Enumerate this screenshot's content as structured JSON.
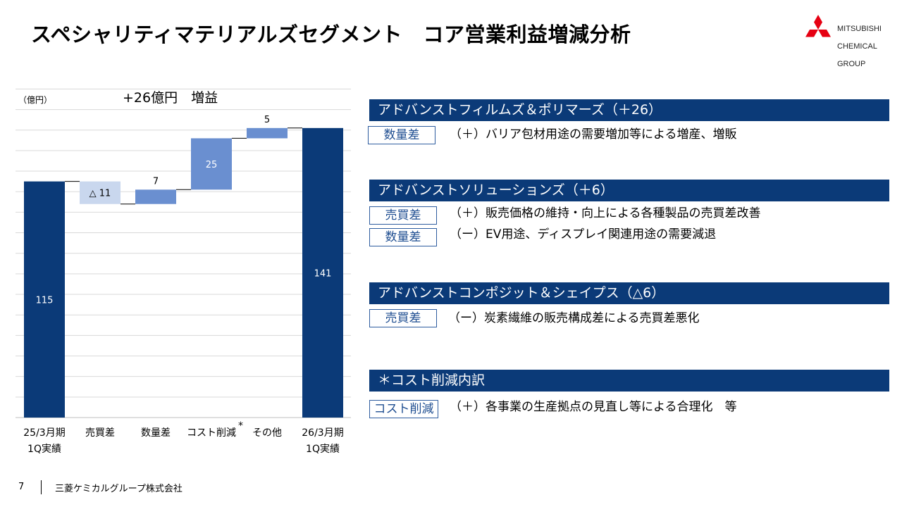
{
  "title": "スペシャリティマテリアルズセグメント　コア営業利益増減分析",
  "logo": {
    "line1": "MITSUBISHI",
    "line2": "CHEMICAL",
    "line3": "GROUP"
  },
  "unit_label": "（億円）",
  "headline": "+26億円　増益",
  "chart_data": {
    "type": "waterfall",
    "ylim": [
      0,
      160
    ],
    "grid": true,
    "categories": [
      "25/3月期\n1Q実績",
      "売買差",
      "数量差",
      "コスト削減",
      "その他",
      "26/3月期\n1Q実績"
    ],
    "steps": [
      {
        "label": "25/3月期\n1Q実績",
        "kind": "total",
        "value": 115,
        "data_label": "115"
      },
      {
        "label": "売買差",
        "kind": "delta",
        "value": -11,
        "data_label": "△ 11"
      },
      {
        "label": "数量差",
        "kind": "delta",
        "value": 7,
        "data_label": "7"
      },
      {
        "label": "コスト削減",
        "kind": "delta",
        "value": 25,
        "data_label": "25"
      },
      {
        "label": "その他",
        "kind": "delta",
        "value": 5,
        "data_label": "5"
      },
      {
        "label": "26/3月期\n1Q実績",
        "kind": "total",
        "value": 141,
        "data_label": "141"
      }
    ],
    "annotation": "*",
    "colors": {
      "total": "#0b3a78",
      "increase": "#6a8fd0",
      "decrease": "#c9d7ee"
    }
  },
  "sections": [
    {
      "header": "アドバンストフィルムズ＆ポリマーズ（＋26）",
      "rows": [
        {
          "tag": "数量差",
          "text": "（＋）バリア包材用途の需要増加等による増産、増販"
        }
      ]
    },
    {
      "header": "アドバンストソリューションズ（＋6）",
      "rows": [
        {
          "tag": "売買差",
          "text": "（＋）販売価格の維持・向上による各種製品の売買差改善"
        },
        {
          "tag": "数量差",
          "text": "（ー）EV用途、ディスプレイ関連用途の需要減退"
        }
      ]
    },
    {
      "header": "アドバンストコンポジット＆シェイプス（△6）",
      "rows": [
        {
          "tag": "売買差",
          "text": "（ー）炭素繊維の販売構成差による売買差悪化"
        }
      ]
    },
    {
      "header": "＊コスト削減内訳",
      "rows": [
        {
          "tag": "コスト削減",
          "text": "（＋）各事業の生産拠点の見直し等による合理化　等"
        }
      ]
    }
  ],
  "footer": {
    "page": "7",
    "company": "三菱ケミカルグループ株式会社"
  }
}
